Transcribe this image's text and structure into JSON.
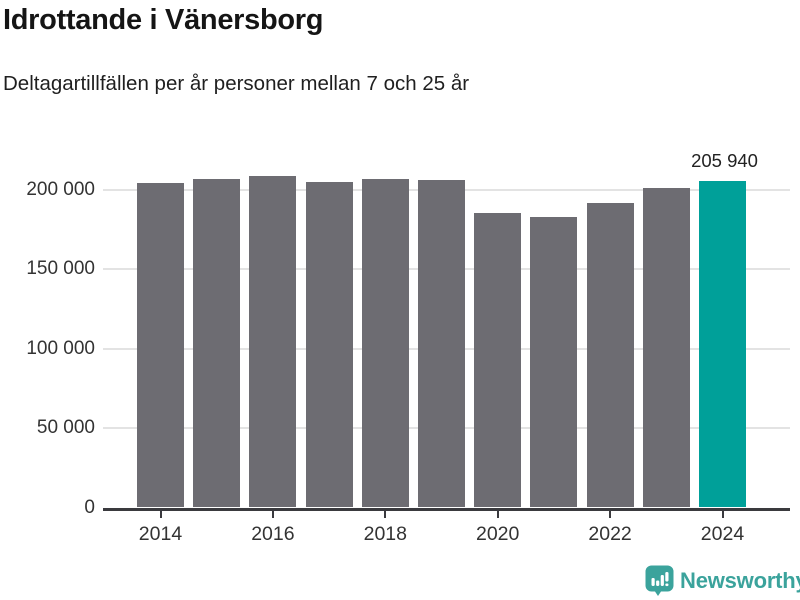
{
  "header": {
    "title": "Idrottande i Vänersborg",
    "subtitle": "Deltagartillfällen per år personer mellan 7 och 25 år"
  },
  "chart_data": {
    "type": "bar",
    "title": "Idrottande i Vänersborg",
    "subtitle": "Deltagartillfällen per år personer mellan 7 och 25 år",
    "categories": [
      2014,
      2015,
      2016,
      2017,
      2018,
      2019,
      2020,
      2021,
      2022,
      2023,
      2024
    ],
    "values": [
      204700,
      207200,
      209100,
      205300,
      207200,
      206300,
      185700,
      183200,
      191800,
      201300,
      205940
    ],
    "ylim": [
      0,
      200000
    ],
    "grid": "horizontal",
    "legend": "none",
    "y_ticks": [
      {
        "value": 0,
        "label": "0"
      },
      {
        "value": 50000,
        "label": "50 000"
      },
      {
        "value": 100000,
        "label": "100 000"
      },
      {
        "value": 150000,
        "label": "150 000"
      },
      {
        "value": 200000,
        "label": "200 000"
      }
    ],
    "x_tick_years": [
      "2014",
      "2016",
      "2018",
      "2020",
      "2022",
      "2024"
    ],
    "bar_color": "#6d6c72",
    "highlight": {
      "index": 10,
      "year": "2024",
      "value": 205940,
      "label": "205 940",
      "color": "#00a099"
    }
  },
  "footer": {
    "brand": "Newsworthy",
    "brand_color": "#3ba39c",
    "icon": "newsworthy-speech-bubble-bar-chart-icon"
  },
  "colors": {
    "axis": "#3a3a3e",
    "gridline": "#e3e3e3",
    "value_label": "#222222",
    "tick_label": "#333333"
  }
}
